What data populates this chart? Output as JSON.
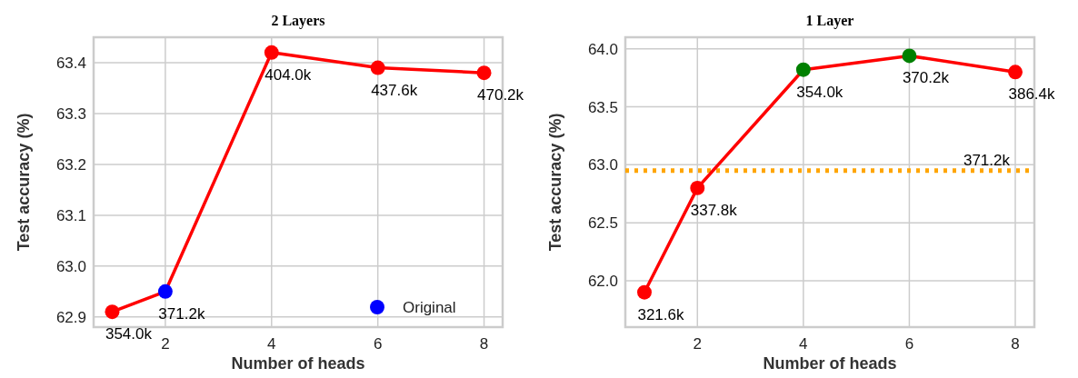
{
  "chart_data": [
    {
      "type": "line",
      "title": "2 Layers",
      "xlabel": "Number of heads",
      "ylabel": "Test accuracy (%)",
      "xlim": [
        0.65,
        8.35
      ],
      "xticks": [
        2,
        4,
        6,
        8
      ],
      "ylim": [
        62.88,
        63.45
      ],
      "yticks": [
        62.9,
        {
          "value": 63,
          "label": "63.0"
        },
        63.1,
        63.2,
        63.3,
        63.4
      ],
      "grid": true,
      "legend": "bottom right",
      "marker": "circle",
      "series": [
        {
          "marker": "none",
          "color": "#ff0000",
          "x": [
            1,
            2,
            4,
            6,
            8
          ],
          "values": [
            62.91,
            62.95,
            63.42,
            63.39,
            63.38
          ]
        },
        {
          "type": "scatter",
          "x": [
            1,
            4,
            6,
            8
          ],
          "values": [
            62.91,
            63.42,
            63.39,
            63.38
          ],
          "colors": [
            "#ff0000",
            "#ff0000",
            "#ff0000",
            "#ff0000"
          ]
        },
        {
          "type": "scatter",
          "name": "Original",
          "color": "#0000ff",
          "x": [
            2
          ],
          "values": [
            62.95
          ]
        }
      ],
      "annotations": [
        {
          "text": "354.0k",
          "x": 1,
          "y": 62.91
        },
        {
          "text": "371.2k",
          "x": 2,
          "y": 62.95
        },
        {
          "text": "404.0k",
          "x": 4,
          "y": 63.42
        },
        {
          "text": "437.6k",
          "x": 6,
          "y": 63.39
        },
        {
          "text": "470.2k",
          "x": 8,
          "y": 63.38
        }
      ]
    },
    {
      "type": "line",
      "title": "1 Layer",
      "xlabel": "Number of heads",
      "ylabel": "Test accuracy (%)",
      "xlim": [
        0.64,
        8.36
      ],
      "xticks": [
        2,
        4,
        6,
        8
      ],
      "ylim": [
        61.6,
        64.1
      ],
      "yticks": [
        {
          "value": 62,
          "label": "62.0"
        },
        62.5,
        {
          "value": 63,
          "label": "63.0"
        },
        63.5,
        {
          "value": 64,
          "label": "64.0"
        }
      ],
      "grid": true,
      "marker": "circle",
      "series": [
        {
          "marker": "none",
          "color": "#ff0000",
          "x": [
            1,
            2,
            4,
            6,
            8
          ],
          "values": [
            61.9,
            62.8,
            63.82,
            63.94,
            63.8
          ]
        },
        {
          "type": "scatter",
          "x": [
            1,
            2,
            4,
            6,
            8
          ],
          "values": [
            61.9,
            62.8,
            63.82,
            63.94,
            63.8
          ],
          "colors": [
            "#ff0000",
            "#ff0000",
            "#008000",
            "#008000",
            "#ff0000"
          ]
        }
      ],
      "ref_lines": [
        {
          "axis": "y",
          "value": 62.95,
          "label": "371.2k",
          "color": "#ffa500",
          "line_style": "dotted"
        }
      ],
      "annotations": [
        {
          "text": "321.6k",
          "x": 1,
          "y": 61.9
        },
        {
          "text": "337.8k",
          "x": 2,
          "y": 62.8
        },
        {
          "text": "354.0k",
          "x": 4,
          "y": 63.82
        },
        {
          "text": "370.2k",
          "x": 6,
          "y": 63.94
        },
        {
          "text": "386.4k",
          "x": 8,
          "y": 63.8
        }
      ]
    }
  ]
}
